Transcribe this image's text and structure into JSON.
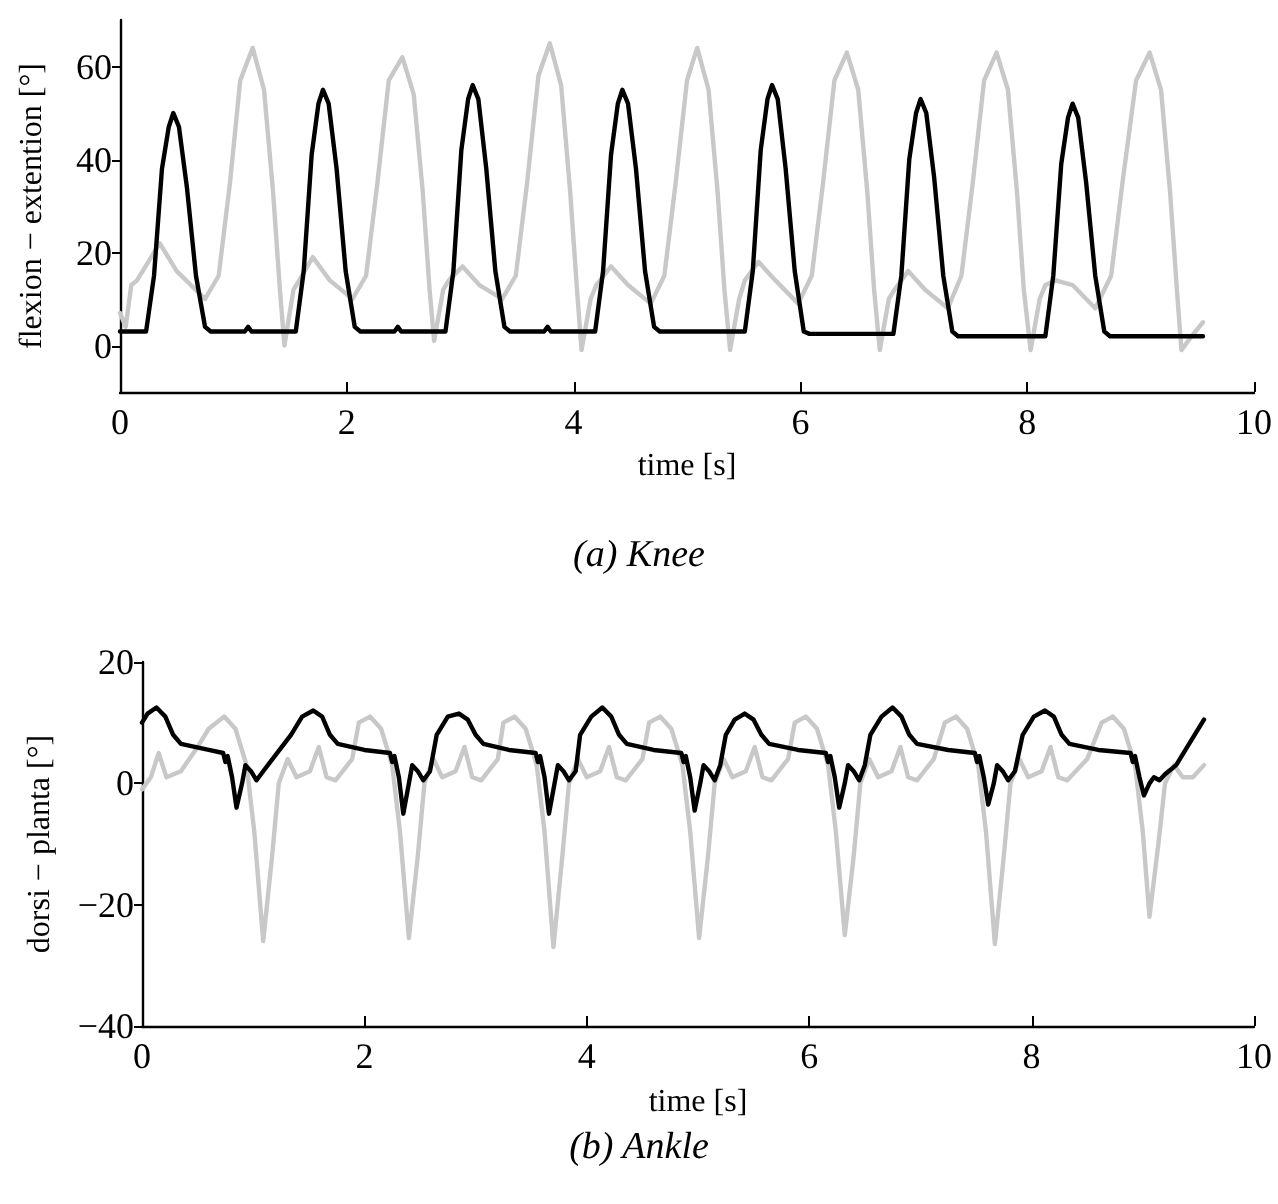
{
  "chart_data": [
    {
      "type": "line",
      "title": "(a) Knee",
      "xlabel": "time [s]",
      "ylabel": "flexion − extention [°]",
      "xlim": [
        0,
        10
      ],
      "xticks": [
        0,
        2,
        4,
        6,
        8,
        10
      ],
      "ylim": [
        -10,
        70
      ],
      "yticks": [
        0,
        20,
        40,
        60
      ],
      "series": [
        {
          "color": "#c8c8c8",
          "x": [
            0,
            0.05,
            0.1,
            0.15,
            0.35,
            0.5,
            0.75,
            0.87,
            0.97,
            1.06,
            1.17,
            1.27,
            1.35,
            1.41,
            1.45,
            1.53,
            1.58,
            1.7,
            1.85,
            2.05,
            2.17,
            2.27,
            2.37,
            2.49,
            2.59,
            2.67,
            2.73,
            2.77,
            2.85,
            2.9,
            3.02,
            3.17,
            3.37,
            3.49,
            3.59,
            3.69,
            3.79,
            3.89,
            3.97,
            4.03,
            4.07,
            4.15,
            4.2,
            4.33,
            4.48,
            4.68,
            4.8,
            4.9,
            5.0,
            5.09,
            5.19,
            5.27,
            5.33,
            5.38,
            5.46,
            5.51,
            5.63,
            5.78,
            5.98,
            6.1,
            6.2,
            6.3,
            6.41,
            6.51,
            6.59,
            6.65,
            6.7,
            6.78,
            6.83,
            6.95,
            7.1,
            7.3,
            7.42,
            7.52,
            7.62,
            7.73,
            7.83,
            7.91,
            7.97,
            8.03,
            8.11,
            8.16,
            8.25,
            8.4,
            8.6,
            8.74,
            8.84,
            8.96,
            9.08,
            9.18,
            9.26,
            9.32,
            9.36,
            9.45,
            9.55
          ],
          "values": [
            7,
            4,
            13,
            14,
            22,
            16,
            10,
            15,
            35,
            57,
            64,
            55,
            33,
            12,
            0,
            12,
            14,
            19,
            14,
            10,
            15,
            35,
            57,
            62,
            54,
            33,
            12,
            1,
            12,
            14,
            17,
            13,
            10,
            15,
            35,
            58,
            65,
            56,
            33,
            12,
            -1,
            10,
            13,
            17,
            13,
            9,
            15,
            35,
            57,
            64,
            55,
            33,
            12,
            -1,
            10,
            14,
            18,
            14,
            9,
            15,
            35,
            57,
            63,
            55,
            33,
            12,
            -1,
            10,
            12,
            16,
            12,
            8,
            15,
            35,
            57,
            63,
            55,
            33,
            12,
            -1,
            10,
            13,
            14,
            13,
            8,
            15,
            35,
            57,
            63,
            55,
            33,
            12,
            -1,
            2,
            5
          ]
        },
        {
          "color": "#000000",
          "x": [
            0,
            0.23,
            0.3,
            0.37,
            0.43,
            0.47,
            0.52,
            0.59,
            0.67,
            0.75,
            0.8,
            1.1,
            1.13,
            1.16,
            1.55,
            1.62,
            1.69,
            1.75,
            1.79,
            1.84,
            1.91,
            1.99,
            2.07,
            2.12,
            2.42,
            2.45,
            2.48,
            2.87,
            2.94,
            3.01,
            3.07,
            3.11,
            3.16,
            3.23,
            3.31,
            3.39,
            3.44,
            3.74,
            3.77,
            3.8,
            4.19,
            4.26,
            4.33,
            4.39,
            4.43,
            4.48,
            4.55,
            4.63,
            4.71,
            4.76,
            5.51,
            5.58,
            5.65,
            5.71,
            5.75,
            5.8,
            5.87,
            5.95,
            6.03,
            6.08,
            6.82,
            6.89,
            6.96,
            7.02,
            7.06,
            7.11,
            7.18,
            7.26,
            7.34,
            7.39,
            8.16,
            8.23,
            8.3,
            8.36,
            8.4,
            8.45,
            8.52,
            8.6,
            8.68,
            8.73,
            9.55
          ],
          "values": [
            3,
            3,
            15,
            38,
            47,
            50,
            47,
            34,
            15,
            4,
            3,
            3,
            4,
            3,
            3,
            16,
            41,
            52,
            55,
            52,
            38,
            16,
            4,
            3,
            3,
            4,
            3,
            3,
            16,
            42,
            53,
            56,
            53,
            38,
            16,
            4,
            3,
            3,
            4,
            3,
            3,
            16,
            41,
            52,
            55,
            52,
            38,
            16,
            4,
            3,
            3,
            16,
            42,
            53,
            56,
            53,
            38,
            16,
            3,
            2.5,
            2.5,
            15,
            40,
            50,
            53,
            50,
            36,
            15,
            3,
            2,
            2,
            15,
            39,
            49,
            52,
            49,
            35,
            15,
            3,
            2,
            2
          ]
        }
      ]
    },
    {
      "type": "line",
      "title": "(b) Ankle",
      "xlabel": "time [s]",
      "ylabel": "dorsi − planta [°]",
      "xlim": [
        0,
        10
      ],
      "xticks": [
        0,
        2,
        4,
        6,
        8,
        10
      ],
      "ylim": [
        -40,
        20
      ],
      "yticks": [
        -40,
        -20,
        0,
        20
      ],
      "series": [
        {
          "color": "#c8c8c8",
          "x": [
            0,
            0.08,
            0.15,
            0.22,
            0.35,
            0.5,
            0.6,
            0.74,
            0.84,
            0.94,
            1.01,
            1.09,
            1.17,
            1.23,
            1.31,
            1.39,
            1.51,
            1.59,
            1.66,
            1.74,
            1.89,
            1.95,
            2.05,
            2.15,
            2.25,
            2.32,
            2.4,
            2.48,
            2.54,
            2.62,
            2.7,
            2.82,
            2.9,
            2.97,
            3.05,
            3.2,
            3.25,
            3.35,
            3.45,
            3.55,
            3.62,
            3.7,
            3.78,
            3.84,
            3.92,
            4.0,
            4.12,
            4.2,
            4.27,
            4.35,
            4.5,
            4.56,
            4.66,
            4.76,
            4.86,
            4.93,
            5.01,
            5.09,
            5.15,
            5.23,
            5.31,
            5.43,
            5.51,
            5.58,
            5.66,
            5.81,
            5.87,
            5.97,
            6.07,
            6.17,
            6.24,
            6.32,
            6.4,
            6.46,
            6.54,
            6.62,
            6.74,
            6.82,
            6.89,
            6.97,
            7.12,
            7.22,
            7.32,
            7.42,
            7.52,
            7.59,
            7.67,
            7.75,
            7.81,
            7.89,
            7.97,
            8.09,
            8.17,
            8.24,
            8.32,
            8.5,
            8.63,
            8.73,
            8.83,
            8.93,
            9.0,
            9.06,
            9.14,
            9.2,
            9.28,
            9.36,
            9.45,
            9.55
          ],
          "values": [
            -1,
            1,
            5,
            1,
            2,
            6,
            9,
            11,
            9,
            3,
            -8,
            -26,
            -12,
            0,
            4,
            1,
            2,
            6,
            1,
            0.5,
            4,
            10,
            11,
            9,
            3,
            -8,
            -25.5,
            -12,
            0,
            4,
            1,
            2,
            6,
            1,
            0.5,
            4,
            10,
            11,
            9,
            3,
            -8,
            -27,
            -12,
            0,
            4,
            1,
            2,
            6,
            1,
            0.5,
            4,
            10,
            11,
            9,
            3,
            -8,
            -25.5,
            -12,
            0,
            4,
            1,
            2,
            6,
            1,
            0.5,
            4,
            10,
            11,
            9,
            3,
            -8,
            -25,
            -12,
            0,
            4,
            1,
            2,
            6,
            1,
            0.5,
            4,
            10,
            11,
            9,
            3,
            -8,
            -26.5,
            -12,
            0,
            4,
            1,
            2,
            6,
            1,
            0.5,
            4,
            10,
            11,
            9,
            3,
            -8,
            -22,
            -10,
            0,
            3,
            1,
            1,
            3
          ]
        },
        {
          "color": "#000000",
          "x": [
            0,
            0.05,
            0.13,
            0.21,
            0.28,
            0.35,
            0.6,
            0.73,
            0.75,
            0.77,
            0.81,
            0.85,
            0.9,
            0.93,
            0.98,
            1.03,
            1.09,
            1.34,
            1.44,
            1.54,
            1.62,
            1.69,
            1.76,
            2.0,
            2.23,
            2.25,
            2.27,
            2.31,
            2.35,
            2.4,
            2.43,
            2.48,
            2.53,
            2.59,
            2.65,
            2.75,
            2.85,
            2.93,
            3.0,
            3.07,
            3.3,
            3.54,
            3.56,
            3.58,
            3.62,
            3.66,
            3.71,
            3.74,
            3.79,
            3.84,
            3.9,
            3.94,
            4.04,
            4.14,
            4.22,
            4.29,
            4.36,
            4.6,
            4.85,
            4.87,
            4.89,
            4.93,
            4.97,
            5.02,
            5.05,
            5.1,
            5.15,
            5.2,
            5.25,
            5.33,
            5.42,
            5.5,
            5.57,
            5.64,
            5.9,
            6.15,
            6.17,
            6.19,
            6.23,
            6.27,
            6.32,
            6.35,
            6.4,
            6.45,
            6.5,
            6.55,
            6.65,
            6.75,
            6.83,
            6.9,
            6.97,
            7.25,
            7.49,
            7.51,
            7.53,
            7.57,
            7.61,
            7.66,
            7.69,
            7.74,
            7.79,
            7.85,
            7.92,
            8.02,
            8.12,
            8.2,
            8.27,
            8.34,
            8.6,
            8.89,
            8.91,
            8.93,
            8.97,
            9.01,
            9.06,
            9.1,
            9.15,
            9.2,
            9.3,
            9.4,
            9.55
          ],
          "values": [
            10,
            11.5,
            12.5,
            11,
            8,
            6.5,
            5.5,
            5,
            3.5,
            4.5,
            1,
            -4,
            0,
            3,
            2,
            0.5,
            2,
            8,
            11,
            12,
            11,
            8,
            6.5,
            5.5,
            5,
            3.5,
            4.5,
            1,
            -5,
            0,
            3,
            2,
            0.5,
            2,
            8,
            11,
            11.5,
            10.5,
            8,
            6.5,
            5.5,
            5,
            3.5,
            4.5,
            1,
            -5,
            0,
            3,
            2,
            0.5,
            2,
            8,
            11,
            12.5,
            11,
            8,
            6.5,
            5.5,
            5,
            3.5,
            4.5,
            1,
            -4.5,
            0,
            3,
            2,
            0.5,
            3,
            8,
            10.5,
            11.5,
            10.5,
            8,
            6.5,
            5.5,
            5,
            3.5,
            4.5,
            1,
            -4,
            0,
            3,
            2,
            0.5,
            3,
            8,
            11,
            12.5,
            11,
            8,
            6.5,
            5.5,
            5,
            3.5,
            4.5,
            1,
            -3.5,
            0,
            3,
            2,
            0.5,
            2,
            8,
            11,
            12,
            11,
            8,
            6.5,
            5.5,
            5,
            3.5,
            4.5,
            1,
            -2,
            0,
            1,
            0.5,
            1.5,
            3,
            6,
            10.5
          ]
        }
      ]
    }
  ]
}
